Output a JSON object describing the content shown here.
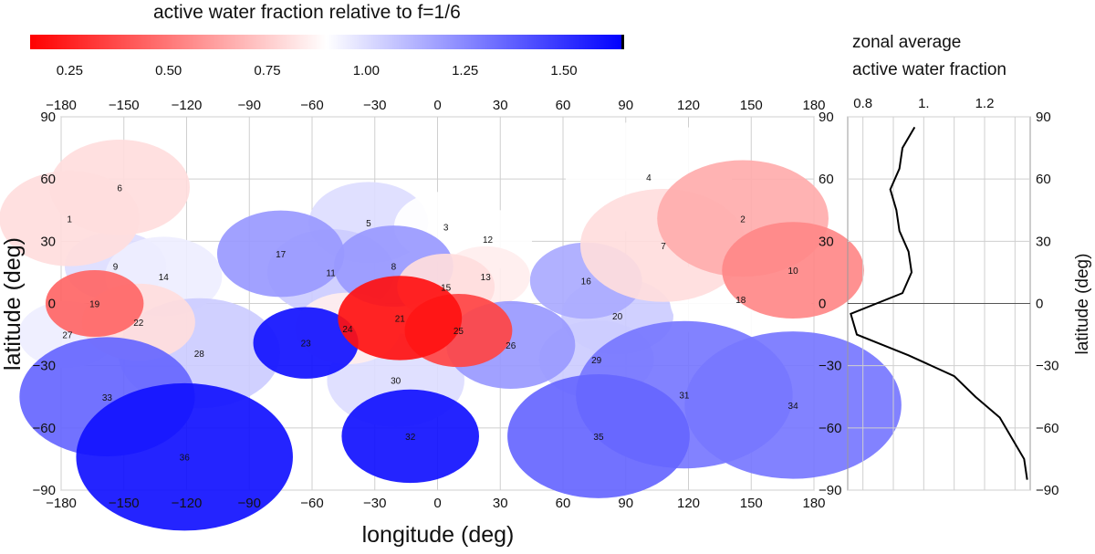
{
  "chart_data": [
    {
      "type": "heatmap",
      "title": "active water fraction relative to f=1/6",
      "xlabel": "longitude (deg)",
      "ylabel": "latitude (deg)",
      "xlim": [
        -180,
        180
      ],
      "ylim": [
        -90,
        90
      ],
      "xticks": [
        -180,
        -150,
        -120,
        -90,
        -60,
        -30,
        0,
        30,
        60,
        90,
        120,
        150,
        180
      ],
      "yticks": [
        -90,
        -60,
        -30,
        0,
        30,
        60,
        90
      ],
      "colorbar": {
        "range": [
          0.15,
          1.65
        ],
        "ticks": [
          0.25,
          0.5,
          0.75,
          1.0,
          1.25,
          1.5
        ],
        "tick_labels": [
          "0.25",
          "0.50",
          "0.75",
          "1.00",
          "1.25",
          "1.50"
        ],
        "low_color": "#ff0000",
        "mid_color": "#ffffff",
        "high_color": "#0000ff"
      },
      "regions": [
        {
          "id": "1",
          "lon": -176,
          "lat": 41,
          "value": 0.8
        },
        {
          "id": "2",
          "lon": 146,
          "lat": 41,
          "value": 0.66
        },
        {
          "id": "3",
          "lon": 4,
          "lat": 37,
          "value": 0.9
        },
        {
          "id": "4",
          "lon": 101,
          "lat": 61,
          "value": 0.9
        },
        {
          "id": "5",
          "lon": -33,
          "lat": 39,
          "value": 1.0
        },
        {
          "id": "6",
          "lon": -152,
          "lat": 56,
          "value": 0.8
        },
        {
          "id": "7",
          "lon": 108,
          "lat": 28,
          "value": 0.8
        },
        {
          "id": "8",
          "lon": -21,
          "lat": 18,
          "value": 1.2
        },
        {
          "id": "9",
          "lon": -154,
          "lat": 18,
          "value": 1.0
        },
        {
          "id": "10",
          "lon": 170,
          "lat": 16,
          "value": 0.55
        },
        {
          "id": "11",
          "lon": -51,
          "lat": 15,
          "value": 1.05
        },
        {
          "id": "12",
          "lon": 24,
          "lat": 31,
          "value": 0.9
        },
        {
          "id": "13",
          "lon": 23,
          "lat": 13,
          "value": 0.85
        },
        {
          "id": "14",
          "lon": -131,
          "lat": 13,
          "value": 0.95
        },
        {
          "id": "15",
          "lon": 4,
          "lat": 8,
          "value": 0.8
        },
        {
          "id": "16",
          "lon": 71,
          "lat": 11,
          "value": 1.15
        },
        {
          "id": "17",
          "lon": -75,
          "lat": 24,
          "value": 1.2
        },
        {
          "id": "18",
          "lon": 145,
          "lat": 2,
          "value": 0.9
        },
        {
          "id": "19",
          "lon": -164,
          "lat": 0,
          "value": 0.45
        },
        {
          "id": "20",
          "lon": 86,
          "lat": -6,
          "value": 1.05
        },
        {
          "id": "21",
          "lon": -18,
          "lat": -7,
          "value": 0.2
        },
        {
          "id": "22",
          "lon": -143,
          "lat": -9,
          "value": 0.8
        },
        {
          "id": "23",
          "lon": -63,
          "lat": -19,
          "value": 1.6
        },
        {
          "id": "24",
          "lon": -43,
          "lat": -12,
          "value": 0.85
        },
        {
          "id": "25",
          "lon": 10,
          "lat": -13,
          "value": 0.35
        },
        {
          "id": "26",
          "lon": 35,
          "lat": -20,
          "value": 1.2
        },
        {
          "id": "27",
          "lon": -177,
          "lat": -15,
          "value": 0.95
        },
        {
          "id": "28",
          "lon": -114,
          "lat": -24,
          "value": 1.05
        },
        {
          "id": "29",
          "lon": 76,
          "lat": -27,
          "value": 1.05
        },
        {
          "id": "30",
          "lon": -20,
          "lat": -37,
          "value": 1.0
        },
        {
          "id": "31",
          "lon": 118,
          "lat": -44,
          "value": 1.3
        },
        {
          "id": "32",
          "lon": -13,
          "lat": -64,
          "value": 1.6
        },
        {
          "id": "33",
          "lon": -158,
          "lat": -45,
          "value": 1.35
        },
        {
          "id": "34",
          "lon": 170,
          "lat": -49,
          "value": 1.3
        },
        {
          "id": "35",
          "lon": 77,
          "lat": -64,
          "value": 1.35
        },
        {
          "id": "36",
          "lon": -121,
          "lat": -74,
          "value": 1.6
        }
      ]
    },
    {
      "type": "line",
      "title": "zonal average",
      "subtitle": "active water fraction",
      "xlabel": "",
      "ylabel": "latitude (deg)",
      "xlim": [
        0.75,
        1.35
      ],
      "ylim": [
        -90,
        90
      ],
      "xticks": [
        0.8,
        1.0,
        1.2
      ],
      "xtick_labels": [
        "0.8",
        "1.",
        "1.2"
      ],
      "yticks": [
        -90,
        -60,
        -30,
        0,
        30,
        60,
        90
      ],
      "series": [
        {
          "name": "zonal average",
          "lat": [
            85,
            75,
            65,
            55,
            45,
            35,
            25,
            15,
            5,
            -5,
            -15,
            -25,
            -35,
            -45,
            -55,
            -65,
            -75,
            -85
          ],
          "values": [
            0.97,
            0.93,
            0.92,
            0.89,
            0.91,
            0.92,
            0.95,
            0.96,
            0.93,
            0.76,
            0.78,
            0.95,
            1.1,
            1.17,
            1.25,
            1.29,
            1.33,
            1.34
          ]
        }
      ]
    }
  ]
}
